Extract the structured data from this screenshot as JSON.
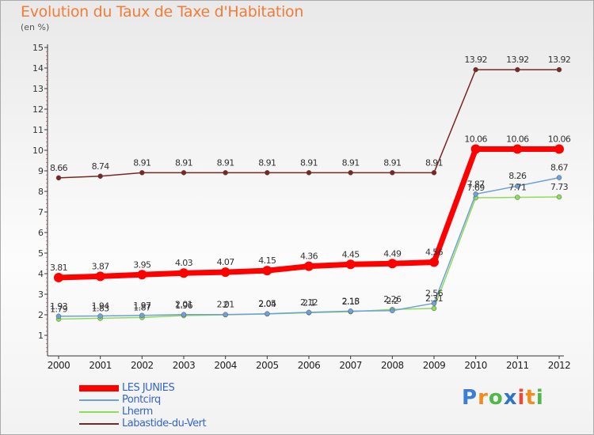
{
  "title": "Evolution du Taux de Taxe d'Habitation",
  "subtitle": "(en %)",
  "logo": {
    "text": "Proxiti",
    "letters": [
      "P",
      "r",
      "o",
      "x",
      "i",
      "t",
      "i"
    ],
    "colors": [
      "#3a7fd5",
      "#f28c1e",
      "#4fb848",
      "#2f74c9",
      "#e84b3a",
      "#f28c1e",
      "#4fb848"
    ]
  },
  "chart_data": {
    "type": "line",
    "title": "Evolution du Taux de Taxe d'Habitation",
    "ylabel": "(en %)",
    "x": [
      "2000",
      "2001",
      "2002",
      "2003",
      "2004",
      "2005",
      "2006",
      "2007",
      "2008",
      "2009",
      "2010",
      "2011",
      "2012"
    ],
    "ylim": [
      0,
      15
    ],
    "yticks": [
      1,
      2,
      3,
      4,
      5,
      6,
      7,
      8,
      9,
      10,
      11,
      12,
      13,
      14,
      15
    ],
    "grid": false,
    "legend_position": "bottom-left",
    "series": [
      {
        "name": "LES JUNIES",
        "color": "#ff0000",
        "width": 7,
        "values": [
          3.81,
          3.87,
          3.95,
          4.03,
          4.07,
          4.15,
          4.36,
          4.45,
          4.49,
          4.56,
          10.06,
          10.06,
          10.06
        ],
        "labels": [
          "3.81",
          "3.87",
          "3.95",
          "4.03",
          "4.07",
          "4.15",
          "4.36",
          "4.45",
          "4.49",
          "4.56",
          "10.06",
          "10.06",
          "10.06"
        ]
      },
      {
        "name": "Pontcirq",
        "color": "#6fa0d6",
        "width": 1.5,
        "values": [
          1.93,
          1.94,
          1.97,
          2.01,
          2.01,
          2.05,
          2.12,
          2.18,
          2.2,
          2.56,
          7.87,
          8.26,
          8.67
        ],
        "labels": [
          "1.93",
          "1.94",
          "1.97",
          "2.01",
          "2.01",
          "2.05",
          "2.12",
          "2.18",
          "2.2",
          "2.56",
          "7.87",
          "8.26",
          "8.67"
        ]
      },
      {
        "name": "Lherm",
        "color": "#8fdc5a",
        "width": 1.5,
        "values": [
          1.79,
          1.83,
          1.87,
          1.96,
          2.0,
          2.04,
          2.1,
          2.15,
          2.26,
          2.31,
          7.69,
          7.71,
          7.73
        ],
        "labels": [
          "1.79",
          "1.83",
          "1.87",
          "1.96",
          "2",
          "2.04",
          "2.1",
          "2.15",
          "2.26",
          "2.31",
          "7.69",
          "7.71",
          "7.73"
        ]
      },
      {
        "name": "Labastide-du-Vert",
        "color": "#7a2626",
        "width": 1.5,
        "values": [
          8.66,
          8.74,
          8.91,
          8.91,
          8.91,
          8.91,
          8.91,
          8.91,
          8.91,
          8.91,
          13.92,
          13.92,
          13.92
        ],
        "labels": [
          "8.66",
          "8.74",
          "8.91",
          "8.91",
          "8.91",
          "8.91",
          "8.91",
          "8.91",
          "8.91",
          "8.91",
          "13.92",
          "13.92",
          "13.92"
        ]
      }
    ]
  }
}
